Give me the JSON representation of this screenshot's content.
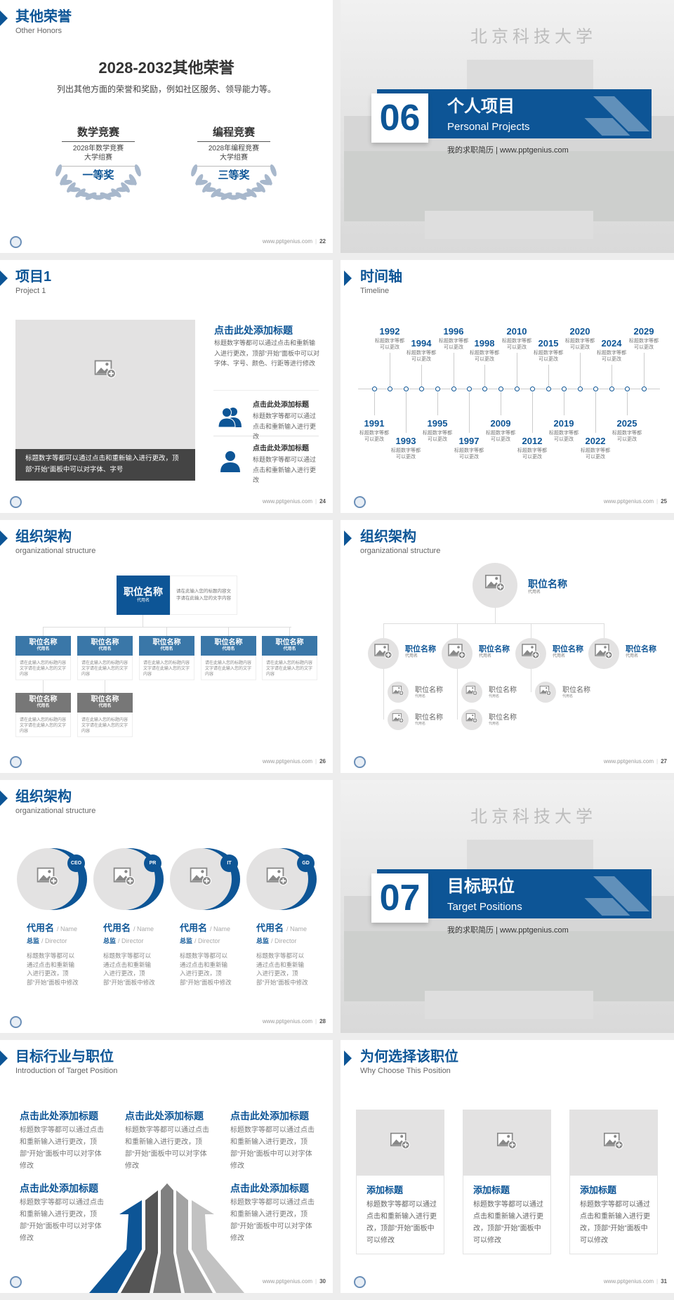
{
  "colors": {
    "accent": "#0d5596",
    "mid_blue": "#3a77a8",
    "gray_box": "#777777",
    "placeholder": "#e3e2e2"
  },
  "footer_url": "www.pptgenius.com",
  "slides": {
    "honors": {
      "title": "其他荣誉",
      "subtitle": "Other Honors",
      "heading": "2028-2032其他荣誉",
      "desc": "列出其他方面的荣誉和奖励，例如社区服务、领导能力等。",
      "page": "22",
      "awards": [
        {
          "name": "数学竞赛",
          "line1": "2028年数学竞赛",
          "line2": "大学组赛",
          "prize": "一等奖"
        },
        {
          "name": "编程竞赛",
          "line1": "2028年编程竞赛",
          "line2": "大学组赛",
          "prize": "三等奖"
        }
      ]
    },
    "section06": {
      "number": "06",
      "title": "个人项目",
      "subtitle": "Personal Projects",
      "caption": "我的求职简历 | www.pptgenius.com",
      "photo_text": "北京科技大学"
    },
    "project1": {
      "title": "项目1",
      "subtitle": "Project 1",
      "page": "24",
      "image_caption": "标题数字等都可以通过点击和重新输入进行更改，顶部“开始”面板中可以对字体、字号",
      "main_title": "点击此处添加标题",
      "main_text": "标题数字等都可以通过点击和重新输入进行更改，顶部“开始”面板中可以对字体、字号、颜色、行距等进行修改",
      "items": [
        {
          "icon": "users-icon",
          "title": "点击此处添加标题",
          "text": "标题数字等都可以通过点击和重新输入进行更改"
        },
        {
          "icon": "user-icon",
          "title": "点击此处添加标题",
          "text": "标题数字等都可以通过点击和重新输入进行更改"
        }
      ]
    },
    "timeline": {
      "title": "时间轴",
      "subtitle": "Timeline",
      "page": "25",
      "item_text": "标题数字等都可以更改",
      "top": [
        "1992",
        "1994",
        "1996",
        "1998",
        "2010",
        "2015",
        "2020",
        "2024",
        "2029"
      ],
      "bottom": [
        "1991",
        "1993",
        "1995",
        "1997",
        "2009",
        "2012",
        "2019",
        "2022",
        "2025"
      ]
    },
    "org1": {
      "title": "组织架构",
      "subtitle": "organizational structure",
      "page": "26",
      "top": {
        "name": "职位名称",
        "alias": "代用名",
        "text": "请在此输入您的标题内容文字请在此输入您的文字内容"
      },
      "row1": [
        {
          "name": "职位名称",
          "alias": "代用名",
          "text": "请在此输入您的标题内容文字请在此输入您的文字内容"
        },
        {
          "name": "职位名称",
          "alias": "代用名",
          "text": "请在此输入您的标题内容文字请在此输入您的文字内容"
        },
        {
          "name": "职位名称",
          "alias": "代用名",
          "text": "请在此输入您的标题内容文字请在此输入您的文字内容"
        },
        {
          "name": "职位名称",
          "alias": "代用名",
          "text": "请在此输入您的标题内容文字请在此输入您的文字内容"
        },
        {
          "name": "职位名称",
          "alias": "代用名",
          "text": "请在此输入您的标题内容文字请在此输入您的文字内容"
        }
      ],
      "row2": [
        {
          "name": "职位名称",
          "alias": "代用名",
          "text": "请在此输入您的标题内容文字请在此输入您的文字内容"
        },
        {
          "name": "职位名称",
          "alias": "代用名",
          "text": "请在此输入您的标题内容文字请在此输入您的文字内容"
        }
      ]
    },
    "org2": {
      "title": "组织架构",
      "subtitle": "organizational structure",
      "page": "27",
      "top": {
        "name": "职位名称",
        "alias": "代用名"
      },
      "level2": [
        {
          "name": "职位名称",
          "alias": "代用名"
        },
        {
          "name": "职位名称",
          "alias": "代用名"
        },
        {
          "name": "职位名称",
          "alias": "代用名"
        },
        {
          "name": "职位名称",
          "alias": "代用名"
        }
      ],
      "level3": [
        {
          "name": "职位名称",
          "alias": "代用名"
        },
        {
          "name": "职位名称",
          "alias": "代用名"
        },
        {
          "name": "职位名称",
          "alias": "代用名"
        },
        {
          "name": "职位名称",
          "alias": "代用名"
        },
        {
          "name": "职位名称",
          "alias": "代用名"
        }
      ]
    },
    "org3": {
      "title": "组织架构",
      "subtitle": "organizational structure",
      "page": "28",
      "members": [
        {
          "badge": "CEO",
          "name": "代用名",
          "name_en": "/ Name",
          "role": "总监",
          "role_en": "/  Director",
          "text": "标题数字等都可以通过点击和重新输入进行更改，顶部“开始”面板中修改"
        },
        {
          "badge": "PR",
          "name": "代用名",
          "name_en": "/ Name",
          "role": "总监",
          "role_en": "/  Director",
          "text": "标题数字等都可以通过点击和重新输入进行更改，顶部“开始”面板中修改"
        },
        {
          "badge": "IT",
          "name": "代用名",
          "name_en": "/ Name",
          "role": "总监",
          "role_en": "/  Director",
          "text": "标题数字等都可以通过点击和重新输入进行更改，顶部“开始”面板中修改"
        },
        {
          "badge": "GD",
          "name": "代用名",
          "name_en": "/ Name",
          "role": "总监",
          "role_en": "/  Director",
          "text": "标题数字等都可以通过点击和重新输入进行更改，顶部“开始”面板中修改"
        }
      ]
    },
    "section07": {
      "number": "07",
      "title": "目标职位",
      "subtitle": "Target Positions",
      "caption": "我的求职简历 | www.pptgenius.com",
      "photo_text": "北京科技大学"
    },
    "target": {
      "title": "目标行业与职位",
      "subtitle": "Introduction of Target Position",
      "page": "30",
      "blocks": [
        {
          "title": "点击此处添加标题",
          "text": "标题数字等都可以通过点击和重新输入进行更改，顶部“开始”面板中可以对字体修改"
        },
        {
          "title": "点击此处添加标题",
          "text": "标题数字等都可以通过点击和重新输入进行更改，顶部“开始”面板中可以对字体修改"
        },
        {
          "title": "点击此处添加标题",
          "text": "标题数字等都可以通过点击和重新输入进行更改，顶部“开始”面板中可以对字体修改"
        },
        {
          "title": "点击此处添加标题",
          "text": "标题数字等都可以通过点击和重新输入进行更改，顶部“开始”面板中可以对字体修改"
        },
        {
          "title": "点击此处添加标题",
          "text": "标题数字等都可以通过点击和重新输入进行更改，顶部“开始”面板中可以对字体修改"
        }
      ]
    },
    "why": {
      "title": "为何选择该职位",
      "subtitle": "Why Choose This Position",
      "page": "31",
      "cards": [
        {
          "title": "添加标题",
          "text": "标题数字等都可以通过点击和重新输入进行更改，顶部“开始”面板中可以修改"
        },
        {
          "title": "添加标题",
          "text": "标题数字等都可以通过点击和重新输入进行更改，顶部“开始”面板中可以修改"
        },
        {
          "title": "添加标题",
          "text": "标题数字等都可以通过点击和重新输入进行更改，顶部“开始”面板中可以修改"
        }
      ]
    }
  }
}
